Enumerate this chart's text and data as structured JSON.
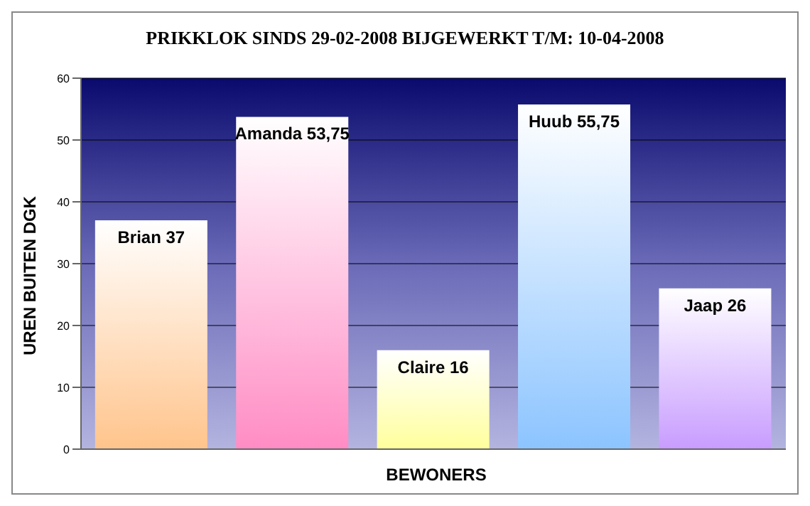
{
  "chart_data": {
    "type": "bar",
    "title": "PRIKKLOK SINDS 29-02-2008 BIJGEWERKT T/M: 10-04-2008",
    "xlabel": "BEWONERS",
    "ylabel": "UREN BUITEN DGK",
    "categories": [
      null,
      null,
      null,
      null,
      null
    ],
    "values": [
      37,
      53.75,
      16,
      55.75,
      26
    ],
    "value_labels": [
      "Brian 37",
      "Amanda 53,75",
      "Claire 16",
      "Huub 55,75",
      "Jaap 26"
    ],
    "colors": [
      "#ffc48c",
      "#ff8cc4",
      "#ffff9c",
      "#8cc4ff",
      "#c89cff"
    ],
    "ylim": [
      0,
      60
    ],
    "yticks": [
      0,
      10,
      20,
      30,
      40,
      50,
      60
    ],
    "grid": "y",
    "tick_labels": "y",
    "legend": false
  }
}
